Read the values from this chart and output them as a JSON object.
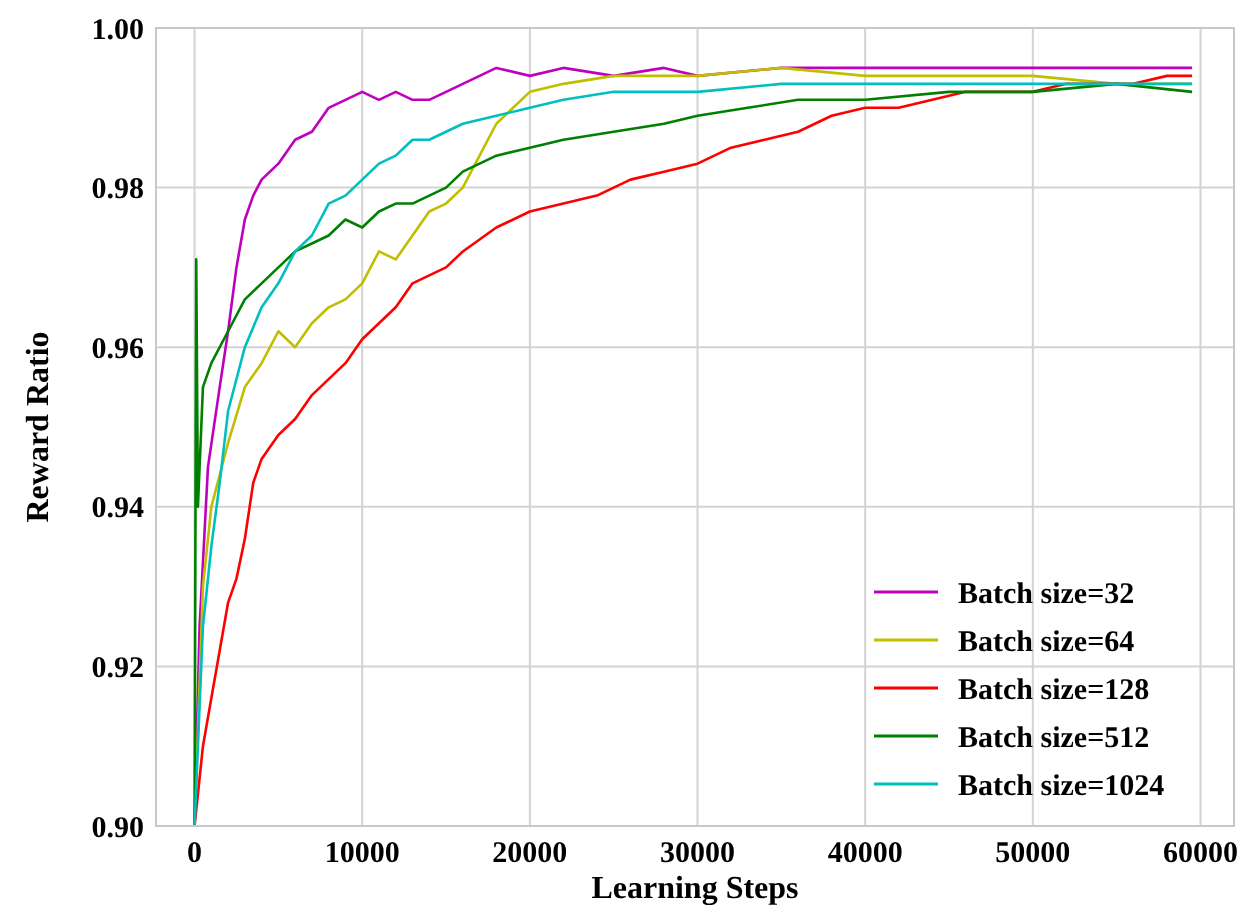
{
  "chart_data": {
    "type": "line",
    "xlabel": "Learning Steps",
    "ylabel": "Reward Ratio",
    "xlim": [
      -2300,
      62000
    ],
    "ylim": [
      0.9,
      1.0
    ],
    "xticks": [
      0,
      10000,
      20000,
      30000,
      40000,
      50000,
      60000
    ],
    "yticks": [
      {
        "value": 0.9,
        "label": "0.90"
      },
      {
        "value": 0.92,
        "label": "0.92"
      },
      {
        "value": 0.94,
        "label": "0.94"
      },
      {
        "value": 0.96,
        "label": "0.96"
      },
      {
        "value": 0.98,
        "label": "0.98"
      },
      {
        "value": 1.0,
        "label": "1.00"
      }
    ],
    "grid": true,
    "legend": "bottom right",
    "line_style": "solid",
    "series": [
      {
        "name": "Batch size=32",
        "color": "#bf00bf",
        "x": [
          0,
          300,
          800,
          1500,
          2000,
          2500,
          3000,
          3500,
          4000,
          5000,
          6000,
          7000,
          8000,
          9000,
          10000,
          11000,
          12000,
          13000,
          14000,
          15000,
          16000,
          17000,
          18000,
          20000,
          22000,
          25000,
          28000,
          30000,
          35000,
          40000,
          45000,
          50000,
          55000,
          59500
        ],
        "values": [
          0.9,
          0.925,
          0.945,
          0.955,
          0.962,
          0.97,
          0.976,
          0.979,
          0.981,
          0.983,
          0.986,
          0.987,
          0.99,
          0.991,
          0.992,
          0.991,
          0.992,
          0.991,
          0.991,
          0.992,
          0.993,
          0.994,
          0.995,
          0.994,
          0.995,
          0.994,
          0.995,
          0.994,
          0.995,
          0.995,
          0.995,
          0.995,
          0.995,
          0.995
        ]
      },
      {
        "name": "Batch size=64",
        "color": "#bfbf00",
        "x": [
          0,
          500,
          1000,
          2000,
          3000,
          4000,
          5000,
          6000,
          7000,
          8000,
          9000,
          10000,
          11000,
          12000,
          13000,
          14000,
          15000,
          16000,
          17000,
          18000,
          19000,
          20000,
          22000,
          25000,
          30000,
          35000,
          40000,
          45000,
          50000,
          55000,
          59500
        ],
        "values": [
          0.9,
          0.93,
          0.94,
          0.948,
          0.955,
          0.958,
          0.962,
          0.96,
          0.963,
          0.965,
          0.966,
          0.968,
          0.972,
          0.971,
          0.974,
          0.977,
          0.978,
          0.98,
          0.984,
          0.988,
          0.99,
          0.992,
          0.993,
          0.994,
          0.994,
          0.995,
          0.994,
          0.994,
          0.994,
          0.993,
          0.993
        ]
      },
      {
        "name": "Batch size=128",
        "color": "#ff0000",
        "x": [
          0,
          500,
          1000,
          1500,
          2000,
          2500,
          3000,
          3500,
          4000,
          5000,
          6000,
          7000,
          8000,
          9000,
          10000,
          11000,
          12000,
          13000,
          14000,
          15000,
          16000,
          18000,
          20000,
          22000,
          24000,
          26000,
          28000,
          30000,
          32000,
          34000,
          36000,
          38000,
          40000,
          42000,
          44000,
          46000,
          48000,
          50000,
          52000,
          54000,
          56000,
          58000,
          59500
        ],
        "values": [
          0.9,
          0.91,
          0.916,
          0.922,
          0.928,
          0.931,
          0.936,
          0.943,
          0.946,
          0.949,
          0.951,
          0.954,
          0.956,
          0.958,
          0.961,
          0.963,
          0.965,
          0.968,
          0.969,
          0.97,
          0.972,
          0.975,
          0.977,
          0.978,
          0.979,
          0.981,
          0.982,
          0.983,
          0.985,
          0.986,
          0.987,
          0.989,
          0.99,
          0.99,
          0.991,
          0.992,
          0.992,
          0.992,
          0.993,
          0.993,
          0.993,
          0.994,
          0.994
        ]
      },
      {
        "name": "Batch size=512",
        "color": "#008000",
        "x": [
          0,
          100,
          200,
          500,
          1000,
          2000,
          3000,
          4000,
          5000,
          6000,
          7000,
          8000,
          9000,
          10000,
          11000,
          12000,
          13000,
          14000,
          15000,
          16000,
          18000,
          20000,
          22000,
          25000,
          28000,
          30000,
          33000,
          36000,
          40000,
          45000,
          50000,
          55000,
          59500
        ],
        "values": [
          0.9,
          0.971,
          0.94,
          0.955,
          0.958,
          0.962,
          0.966,
          0.968,
          0.97,
          0.972,
          0.973,
          0.974,
          0.976,
          0.975,
          0.977,
          0.978,
          0.978,
          0.979,
          0.98,
          0.982,
          0.984,
          0.985,
          0.986,
          0.987,
          0.988,
          0.989,
          0.99,
          0.991,
          0.991,
          0.992,
          0.992,
          0.993,
          0.992
        ]
      },
      {
        "name": "Batch size=1024",
        "color": "#00bfbf",
        "x": [
          0,
          500,
          1000,
          1500,
          2000,
          3000,
          4000,
          5000,
          6000,
          7000,
          8000,
          9000,
          10000,
          11000,
          12000,
          13000,
          14000,
          15000,
          16000,
          18000,
          20000,
          22000,
          25000,
          30000,
          35000,
          40000,
          45000,
          50000,
          55000,
          59500
        ],
        "values": [
          0.9,
          0.925,
          0.935,
          0.943,
          0.952,
          0.96,
          0.965,
          0.968,
          0.972,
          0.974,
          0.978,
          0.979,
          0.981,
          0.983,
          0.984,
          0.986,
          0.986,
          0.987,
          0.988,
          0.989,
          0.99,
          0.991,
          0.992,
          0.992,
          0.993,
          0.993,
          0.993,
          0.993,
          0.993,
          0.993
        ]
      }
    ]
  }
}
